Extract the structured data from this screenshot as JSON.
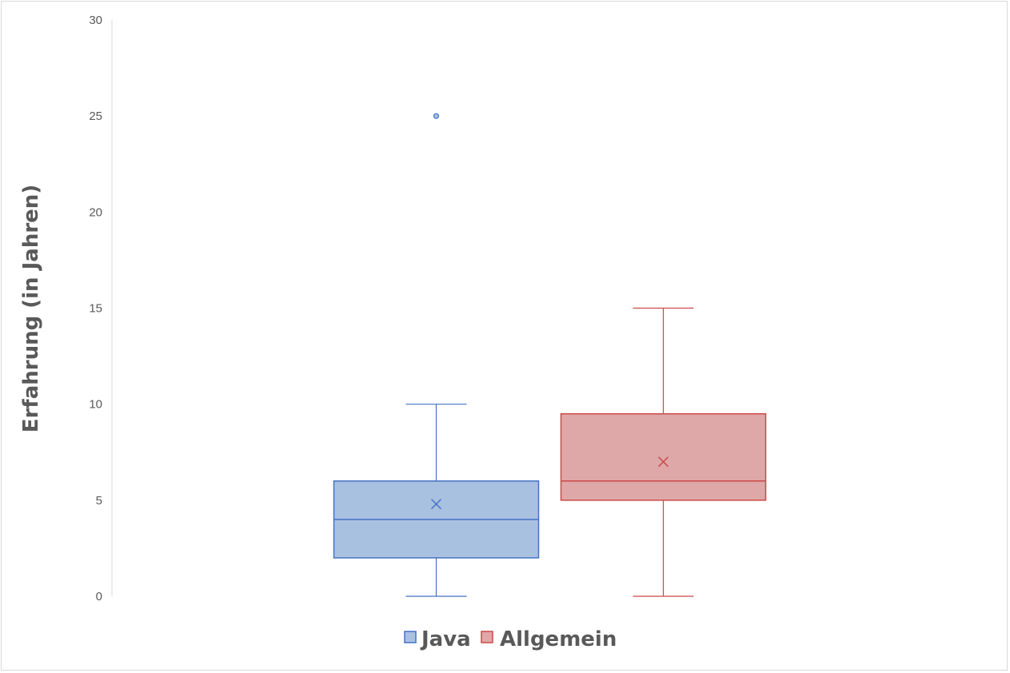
{
  "chart_data": {
    "type": "boxplot",
    "ylabel": "Erfahrung (in Jahren)",
    "ylim": [
      0,
      30
    ],
    "yticks": [
      0,
      5,
      10,
      15,
      20,
      25,
      30
    ],
    "legend_position": "bottom",
    "grid": false,
    "series": [
      {
        "name": "Java",
        "color": "#4472c4",
        "fill": "#a9c1e0",
        "min": 0,
        "q1": 2,
        "median": 4,
        "q3": 6,
        "max": 10,
        "mean": 4.8,
        "outliers": [
          25
        ]
      },
      {
        "name": "Allgemein",
        "color": "#cc4848",
        "fill": "#dea8a8",
        "min": 0,
        "q1": 5,
        "median": 6,
        "q3": 9.5,
        "max": 15,
        "mean": 7,
        "outliers": []
      }
    ]
  }
}
